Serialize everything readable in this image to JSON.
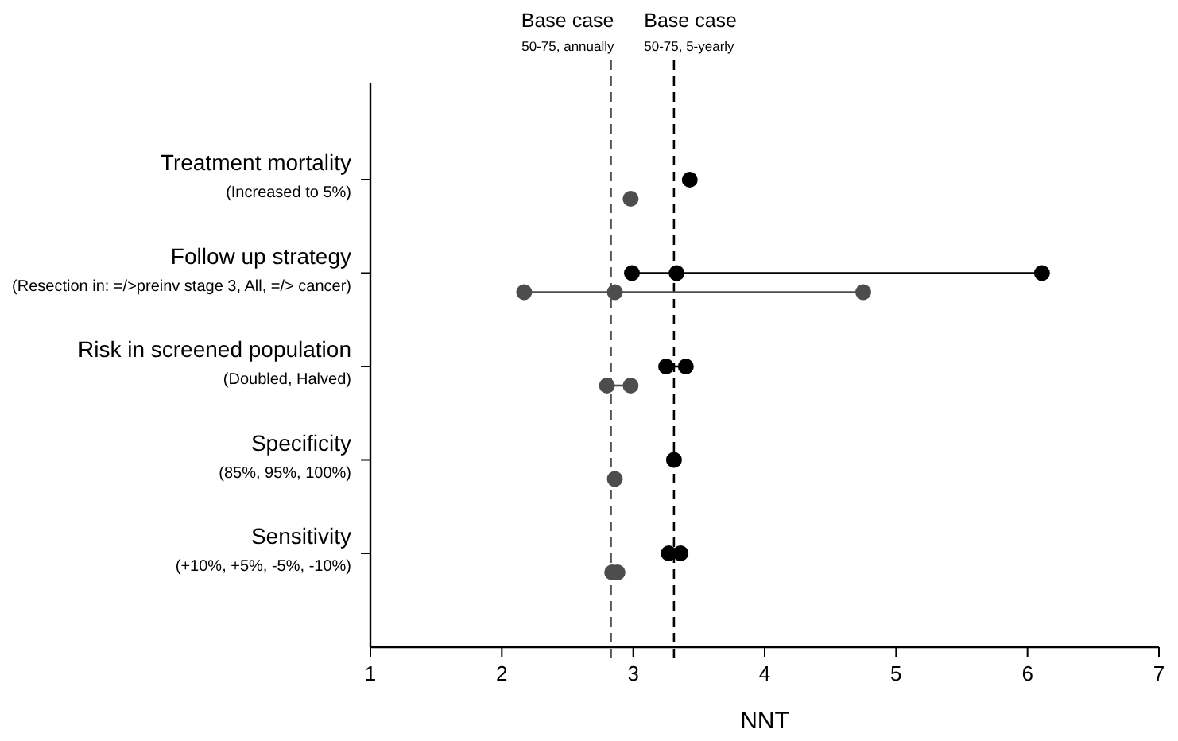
{
  "chart_data": {
    "type": "scatter",
    "orientation": "horizontal",
    "xlabel": "NNT",
    "xlim": [
      1,
      7
    ],
    "xticks": [
      1,
      2,
      3,
      4,
      5,
      6,
      7
    ],
    "categories": [
      "Treatment mortality $_{(Increased to 5%)}$",
      "Follow up strategy $_{(Resection in: =/>preinv stage 3, All, =/> cancer)}$",
      "Risk in screened population $_{(Doubled, Halved)}$",
      "Specificity $_{(85%, 95%, 100%)}$",
      "Sensitivity $_{(+10%, +5%, -5%, -10%)}$"
    ],
    "marker": "circle",
    "ref_lines": [
      {
        "axis": "x",
        "value": 2.83,
        "label": "Base case $_{50-75, annually}$",
        "color": "#555555",
        "line_style": "dashed"
      },
      {
        "axis": "x",
        "value": 3.31,
        "label": "Base case $_{50-75, 5-yearly}$",
        "color": "#000000",
        "line_style": "dashed"
      }
    ],
    "series": [
      {
        "color": "#000000",
        "values": [
          3.43,
          2.99,
          3.25,
          3.31,
          3.27
        ]
      },
      {
        "color": "#000000",
        "values": [
          null,
          3.33,
          3.4,
          null,
          3.36
        ]
      },
      {
        "color": "#000000",
        "values": [
          null,
          6.11,
          null,
          null,
          null
        ]
      },
      {
        "color": "#4d4d4d",
        "values": [
          2.98,
          2.17,
          2.8,
          2.86,
          2.84
        ]
      },
      {
        "color": "#4d4d4d",
        "values": [
          null,
          2.86,
          2.98,
          null,
          2.88
        ]
      },
      {
        "color": "#4d4d4d",
        "values": [
          null,
          4.75,
          null,
          null,
          null
        ]
      }
    ]
  }
}
